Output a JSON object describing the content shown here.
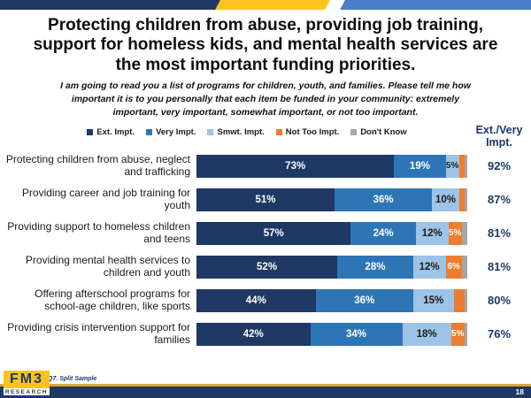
{
  "slide": {
    "title_lines": [
      "Protecting children from abuse, providing job training,",
      "support for homeless kids, and mental health services are",
      "the most important funding priorities."
    ],
    "subtitle": "I am going to read you a list of programs for children, youth, and families. Please tell me how important it is to you personally that each item be funded in your community: extremely important, very important, somewhat important, or not too important.",
    "footnote": "Q7. Split Sample",
    "page_number": "18",
    "logo": {
      "text": "FM3",
      "subtext": "RESEARCH"
    }
  },
  "colors": {
    "navy": "#1F3864",
    "blue": "#2E75B6",
    "light_blue": "#9DC3E6",
    "orange": "#ED7D31",
    "gray": "#A6A6A6",
    "gold": "#FFC220",
    "banner_blue": "#4D7EC8"
  },
  "chart_data": {
    "type": "bar",
    "orientation": "horizontal-stacked",
    "xlim": [
      0,
      100
    ],
    "right_column_header": "Ext./Very Impt.",
    "series": [
      {
        "name": "Ext. Impt.",
        "color": "#1F3864",
        "text_color": "#ffffff"
      },
      {
        "name": "Very Impt.",
        "color": "#2E75B6",
        "text_color": "#ffffff"
      },
      {
        "name": "Smwt. Impt.",
        "color": "#9DC3E6",
        "text_color": "#1a1a1a"
      },
      {
        "name": "Not Too Impt.",
        "color": "#ED7D31",
        "text_color": "#ffffff"
      },
      {
        "name": "Don't Know",
        "color": "#A6A6A6",
        "text_color": "#ffffff"
      }
    ],
    "rows": [
      {
        "category": "Protecting children from abuse, neglect and trafficking",
        "values": [
          73,
          19,
          5,
          2,
          1
        ],
        "labels": [
          "73%",
          "19%",
          "5%",
          "",
          ""
        ],
        "total": "92%"
      },
      {
        "category": "Providing career and job training for youth",
        "values": [
          51,
          36,
          10,
          2,
          1
        ],
        "labels": [
          "51%",
          "36%",
          "10%",
          "",
          ""
        ],
        "total": "87%"
      },
      {
        "category": "Providing support to homeless children and teens",
        "values": [
          57,
          24,
          12,
          5,
          2
        ],
        "labels": [
          "57%",
          "24%",
          "12%",
          "5%",
          ""
        ],
        "total": "81%"
      },
      {
        "category": "Providing mental health services to children and youth",
        "values": [
          52,
          28,
          12,
          6,
          2
        ],
        "labels": [
          "52%",
          "28%",
          "12%",
          "6%",
          ""
        ],
        "total": "81%"
      },
      {
        "category": "Offering afterschool programs for school-age children, like sports",
        "values": [
          44,
          36,
          15,
          4,
          1
        ],
        "labels": [
          "44%",
          "36%",
          "15%",
          "",
          ""
        ],
        "total": "80%"
      },
      {
        "category": "Providing crisis intervention support for families",
        "values": [
          42,
          34,
          18,
          5,
          1
        ],
        "labels": [
          "42%",
          "34%",
          "18%",
          "5%",
          ""
        ],
        "total": "76%"
      }
    ]
  }
}
